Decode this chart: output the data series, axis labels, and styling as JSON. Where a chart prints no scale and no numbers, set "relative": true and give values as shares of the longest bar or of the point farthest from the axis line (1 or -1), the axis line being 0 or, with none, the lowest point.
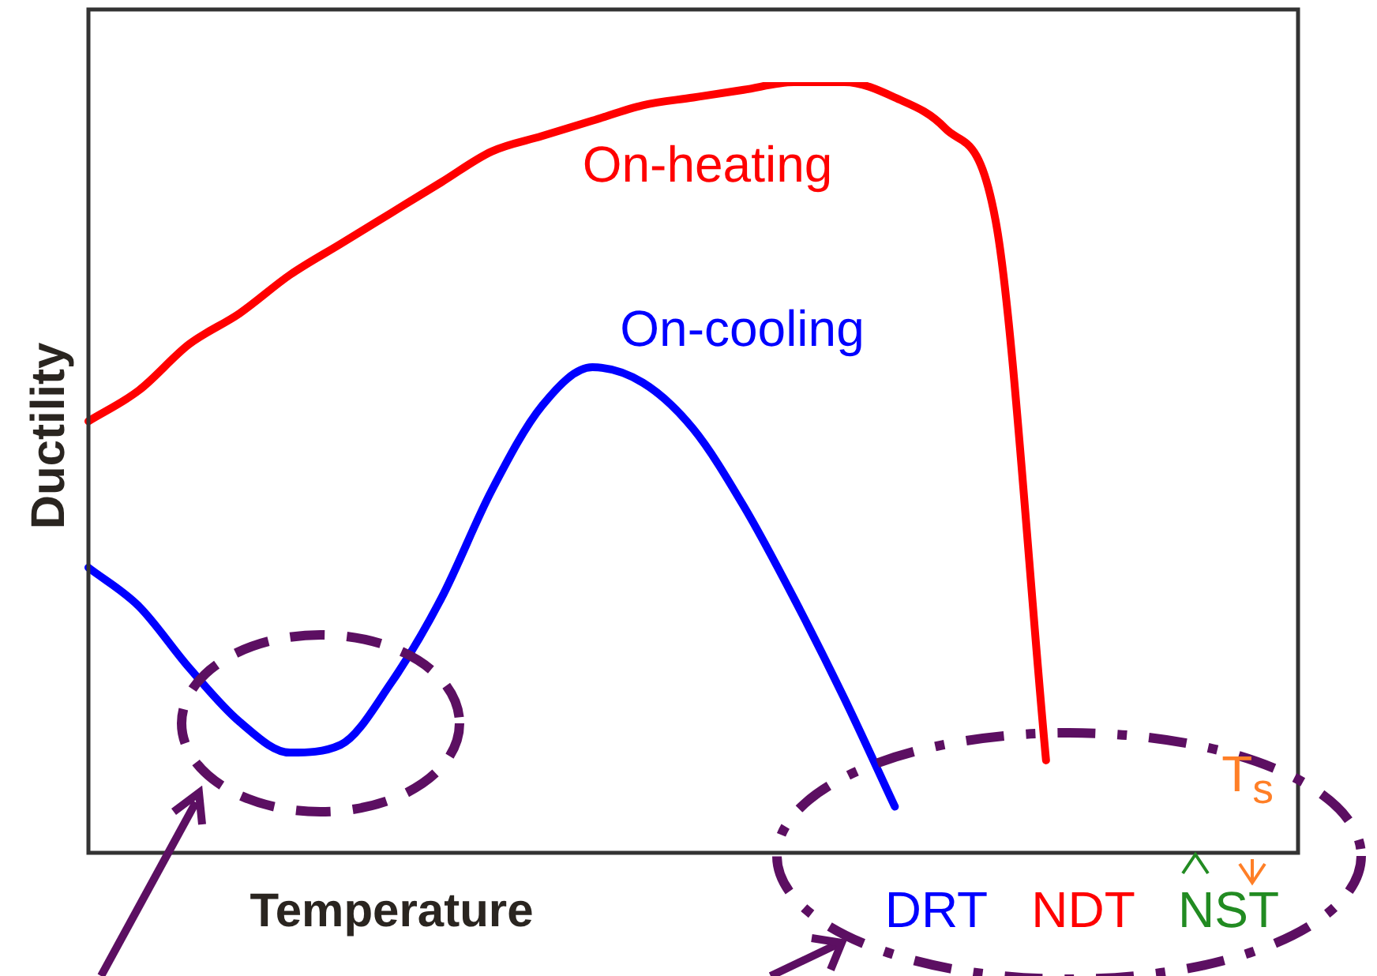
{
  "chart_data": {
    "type": "line",
    "relative": true,
    "xlabel": "Temperature",
    "ylabel": "Ductility",
    "legend": false,
    "marker": "none",
    "line_style": "solid",
    "tick_labels": false,
    "categories": [
      null,
      null,
      null,
      null,
      null,
      null,
      null,
      null,
      null,
      null,
      null,
      null,
      null,
      null,
      null,
      null,
      null,
      null,
      null,
      null,
      null,
      null,
      null,
      null,
      null
    ],
    "series": [
      {
        "name": "On-heating",
        "color": "#ff0000",
        "values": [
          0.56,
          0.6,
          0.66,
          0.7,
          0.75,
          0.79,
          0.83,
          0.87,
          0.91,
          0.93,
          0.95,
          0.97,
          0.98,
          0.99,
          1,
          1,
          0.98,
          0.94,
          0.82,
          0.12,
          null,
          null,
          null,
          null,
          null
        ]
      },
      {
        "name": "On-cooling",
        "color": "#0000ff",
        "values": [
          0.37,
          0.32,
          0.24,
          0.17,
          0.13,
          0.14,
          0.22,
          0.33,
          0.47,
          0.58,
          0.63,
          0.61,
          0.55,
          0.45,
          0.33,
          0.2,
          0.06,
          null,
          null,
          null,
          null,
          null,
          null,
          null,
          null
        ]
      }
    ],
    "annotations": [
      "DRT",
      "NDT",
      "NST",
      "T$_{s}$"
    ]
  }
}
